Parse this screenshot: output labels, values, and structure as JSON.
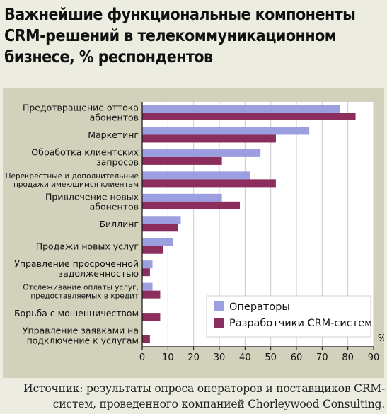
{
  "title_lines": [
    "Важнейшие функциональные компоненты",
    "CRM-решений в телекоммуникационном",
    "бизнесе, % респондентов"
  ],
  "source_text": "Источник: результаты опроса операторов и поставщиков CRM-систем, проведенного компанией Chorleywood Consulting.",
  "colors": {
    "operators": "#9b9fe0",
    "developers": "#8b2e5e",
    "panel": "#d1d1bc",
    "background": "#ecede0"
  },
  "chart_data": {
    "type": "bar",
    "orientation": "horizontal",
    "xunit": "%",
    "xlim": [
      0,
      90
    ],
    "xticks": [
      0,
      10,
      20,
      30,
      40,
      50,
      60,
      70,
      80,
      90
    ],
    "grid": true,
    "legend_position": "bottom-right",
    "categories": [
      [
        "Предотвращение оттока",
        "абонентов"
      ],
      [
        "Маркетинг"
      ],
      [
        "Обработка клиентских",
        "запросов"
      ],
      [
        "Перекрестные и дополнительные",
        "продажи имеющимся клиентам"
      ],
      [
        "Привлечение новых",
        "абонентов"
      ],
      [
        "Биллинг"
      ],
      [
        "Продажи новых услуг"
      ],
      [
        "Управление просроченной",
        "задолженностью"
      ],
      [
        "Отслеживание оплаты услуг,",
        "предоставляемых в кредит"
      ],
      [
        "Борьба с мошенничеством"
      ],
      [
        "Управление заявками на",
        "подключение к услугам"
      ]
    ],
    "small_label_indices": [
      3,
      8
    ],
    "series": [
      {
        "name": "Операторы",
        "values": [
          77,
          65,
          46,
          42,
          31,
          15,
          12,
          4,
          4,
          0,
          0
        ]
      },
      {
        "name": "Разработчики CRM-систем",
        "values": [
          83,
          52,
          31,
          52,
          38,
          14,
          8,
          3,
          7,
          7,
          3
        ]
      }
    ]
  }
}
